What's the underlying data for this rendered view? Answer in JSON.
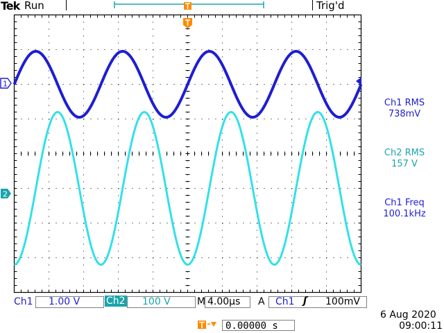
{
  "header": {
    "brand": "Tek",
    "run_state": "Run",
    "trigger_status": "Trig'd"
  },
  "screen": {
    "ch1_marker": "1",
    "ch2_marker": "2",
    "trigger_marker": "T",
    "trigger_position_marker": "T"
  },
  "measurements": [
    {
      "label": "Ch1 RMS",
      "value": "738mV"
    },
    {
      "label": "Ch2 RMS",
      "value": "157 V"
    },
    {
      "label": "Ch1 Freq",
      "value": "100.1kHz"
    }
  ],
  "status_bar": {
    "ch1_label": "Ch1",
    "ch1_scale": "1.00 V",
    "ch2_label": "Ch2",
    "ch2_scale": "100 V",
    "timebase_label": "M",
    "timebase": "4.00µs",
    "trigger_mode": "A",
    "trigger_source": "Ch1",
    "trigger_slope": "ʃ",
    "trigger_level": "100mV",
    "trigger_position_value": "0.00000 s",
    "date": "6 Aug 2020",
    "time": "09:00:11"
  },
  "colors": {
    "ch1": "#1e1ed2",
    "ch2": "#33e0e8",
    "trigger": "#ff8a00",
    "grid": "#000000"
  },
  "waveforms": {
    "ch1": {
      "cycles_on_screen": 4.0,
      "amplitude_div": 0.95,
      "offset_div": 2.0,
      "phase": "sine"
    },
    "ch2": {
      "cycles_on_screen": 4.0,
      "amplitude_div": 2.2,
      "offset_div": -1.0,
      "phase": "-cos"
    }
  }
}
